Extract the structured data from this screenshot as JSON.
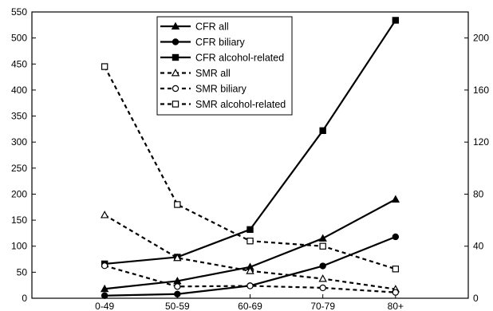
{
  "chart_data": {
    "type": "line",
    "categories": [
      "0-49",
      "50-59",
      "60-69",
      "70-79",
      "80+"
    ],
    "left_axis": {
      "ylim": [
        0,
        550
      ],
      "ticks": [
        0,
        50,
        100,
        150,
        200,
        250,
        300,
        350,
        400,
        450,
        500,
        550
      ]
    },
    "right_axis": {
      "ylim": [
        0,
        220
      ],
      "ticks": [
        0,
        40,
        80,
        120,
        160,
        200
      ]
    },
    "grid": false,
    "legend_position": "top-center",
    "series": [
      {
        "name": "CFR all",
        "axis": "left",
        "style": "solid",
        "marker": "triangle-filled",
        "values": [
          18,
          33,
          60,
          115,
          190
        ]
      },
      {
        "name": "CFR biliary",
        "axis": "left",
        "style": "solid",
        "marker": "circle-filled",
        "values": [
          5,
          8,
          24,
          62,
          118
        ]
      },
      {
        "name": "CFR alcohol-related",
        "axis": "left",
        "style": "solid",
        "marker": "square-filled",
        "values": [
          66,
          79,
          132,
          322,
          534
        ]
      },
      {
        "name": "SMR all",
        "axis": "right",
        "style": "dashed",
        "marker": "triangle-open",
        "values": [
          64,
          31,
          21,
          15,
          7
        ]
      },
      {
        "name": "SMR biliary",
        "axis": "right",
        "style": "dashed",
        "marker": "circle-open",
        "values": [
          25,
          9,
          9.5,
          8,
          4.5
        ]
      },
      {
        "name": "SMR alcohol-related",
        "axis": "right",
        "style": "dashed",
        "marker": "square-open",
        "values": [
          178,
          72,
          44,
          40,
          22.5
        ]
      }
    ]
  }
}
